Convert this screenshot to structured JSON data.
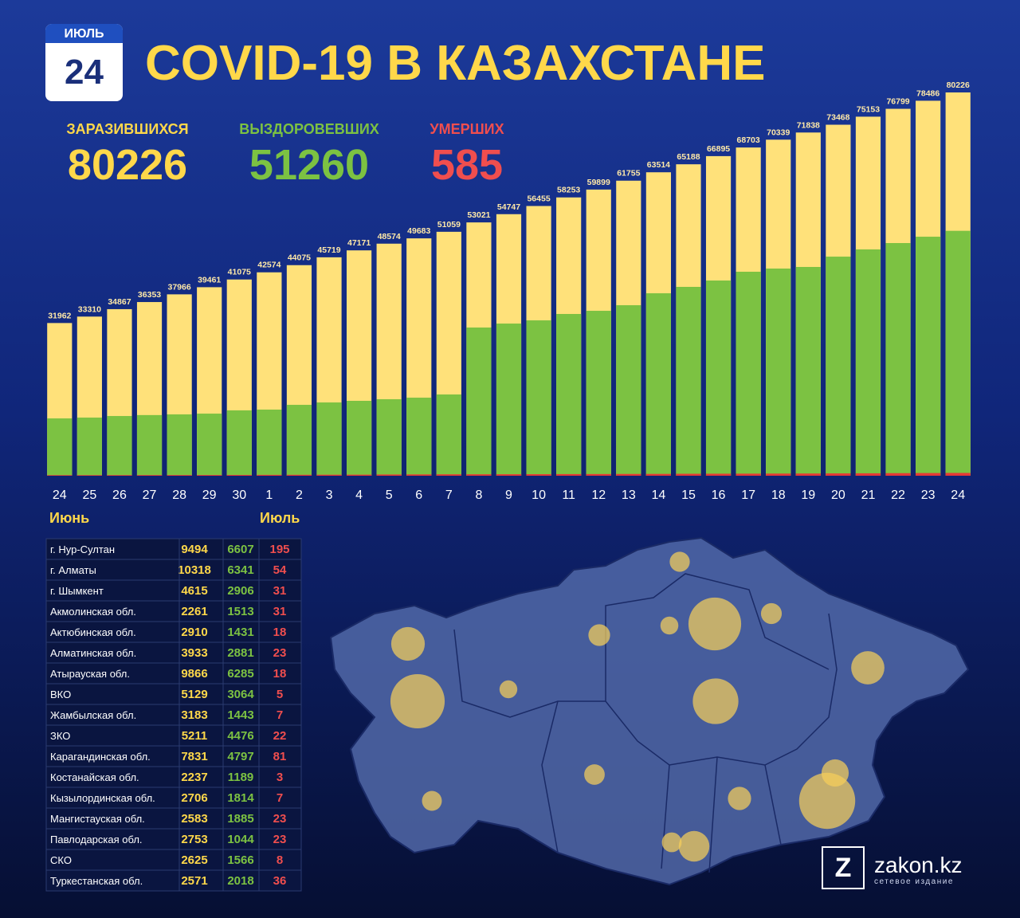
{
  "header": {
    "month": "ИЮЛЬ",
    "day": "24",
    "title": "COVID-19 В КАЗАХСТАНЕ"
  },
  "stats": [
    {
      "label": "ЗАРАЗИВШИХСЯ",
      "value": 80226
    },
    {
      "label": "ВЫЗДОРОВЕВШИХ",
      "value": 51260
    },
    {
      "label": "УМЕРШИХ",
      "value": 585
    }
  ],
  "chart_data": {
    "type": "bar",
    "categories": [
      "24",
      "25",
      "26",
      "27",
      "28",
      "29",
      "30",
      "1",
      "2",
      "3",
      "4",
      "5",
      "6",
      "7",
      "8",
      "9",
      "10",
      "11",
      "12",
      "13",
      "14",
      "15",
      "16",
      "17",
      "18",
      "19",
      "20",
      "21",
      "22",
      "23",
      "24"
    ],
    "x_group_labels": [
      "Июнь",
      "Июль"
    ],
    "ylim": [
      0,
      80226
    ],
    "series": [
      {
        "color": "#ffe17a",
        "values": [
          31962,
          33310,
          34867,
          36353,
          37966,
          39461,
          41075,
          42574,
          44075,
          45719,
          47171,
          48574,
          49683,
          51059,
          53021,
          54747,
          56455,
          58253,
          59899,
          61755,
          63514,
          65188,
          66895,
          68703,
          70339,
          71838,
          73468,
          75153,
          76799,
          78486,
          80226
        ]
      },
      {
        "color": "#7cc242",
        "values": [
          12000,
          12170,
          12500,
          12700,
          12840,
          13000,
          13680,
          13840,
          14840,
          15340,
          15680,
          16010,
          16340,
          17010,
          31020,
          31850,
          32520,
          33860,
          34520,
          35690,
          38190,
          39530,
          40860,
          42700,
          43360,
          43700,
          45860,
          47370,
          48700,
          50030,
          51260
        ]
      },
      {
        "color": "#e53935",
        "values": [
          128,
          130,
          136,
          143,
          149,
          156,
          171,
          188,
          200,
          217,
          227,
          264,
          281,
          300,
          306,
          315,
          327,
          347,
          357,
          375,
          385,
          410,
          423,
          435,
          450,
          465,
          490,
          510,
          540,
          564,
          585
        ]
      }
    ]
  },
  "table": {
    "rows": [
      [
        "г. Нур-Султан",
        9494,
        6607,
        195
      ],
      [
        "г. Алматы",
        10318,
        6341,
        54
      ],
      [
        "г. Шымкент",
        4615,
        2906,
        31
      ],
      [
        "Акмолинская обл.",
        2261,
        1513,
        31
      ],
      [
        "Актюбинская обл.",
        2910,
        1431,
        18
      ],
      [
        "Алматинская обл.",
        3933,
        2881,
        23
      ],
      [
        "Атырауская обл.",
        9866,
        6285,
        18
      ],
      [
        "ВКО",
        5129,
        3064,
        5
      ],
      [
        "Жамбылская обл.",
        3183,
        1443,
        7
      ],
      [
        "ЗКО",
        5211,
        4476,
        22
      ],
      [
        "Карагандинская обл.",
        7831,
        4797,
        81
      ],
      [
        "Костанайская обл.",
        2237,
        1189,
        3
      ],
      [
        "Кызылординская обл.",
        2706,
        1814,
        7
      ],
      [
        "Мангистауская обл.",
        2583,
        1885,
        23
      ],
      [
        "Павлодарская обл.",
        2753,
        1044,
        23
      ],
      [
        "СКО",
        2625,
        1566,
        8
      ],
      [
        "Туркестанская обл.",
        2571,
        2018,
        36
      ]
    ]
  },
  "logo": {
    "mark": "Z",
    "name": "zakon.kz",
    "tagline": "сетевое издание"
  }
}
